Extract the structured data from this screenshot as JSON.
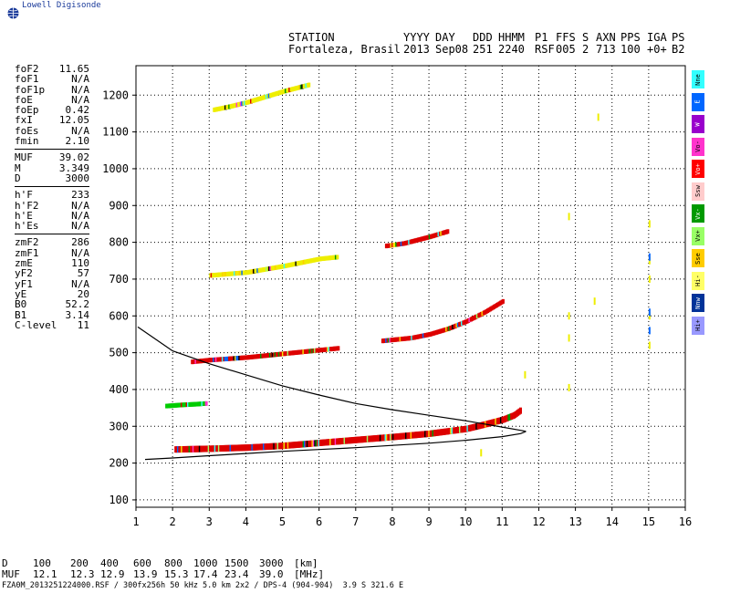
{
  "brand": {
    "name": "Lowell Digisonde",
    "accent": "#1a3a9a"
  },
  "header": {
    "row1": [
      "STATION",
      "YYYY",
      "DAY",
      "DDD",
      "HHMM",
      "P1",
      "FFS",
      "S",
      "AXN",
      "PPS",
      "IGA",
      "PS"
    ],
    "row2": [
      "Fortaleza, Brasil",
      "2013",
      "Sep08",
      "251",
      "2240",
      "RSF",
      "005",
      "2",
      "713",
      "100",
      "+0+",
      "B2"
    ]
  },
  "params": {
    "group1": [
      [
        "foF2",
        "11.65"
      ],
      [
        "foF1",
        "N/A"
      ],
      [
        "foF1p",
        "N/A"
      ],
      [
        "foE",
        "N/A"
      ],
      [
        "foEp",
        "0.42"
      ],
      [
        "fxI",
        "12.05"
      ],
      [
        "foEs",
        "N/A"
      ],
      [
        "fmin",
        "2.10"
      ]
    ],
    "group2": [
      [
        "MUF",
        "39.02"
      ],
      [
        "M",
        "3.349"
      ],
      [
        "D",
        "3000"
      ]
    ],
    "group3": [
      [
        "h'F",
        "233"
      ],
      [
        "h'F2",
        "N/A"
      ],
      [
        "h'E",
        "N/A"
      ],
      [
        "h'Es",
        "N/A"
      ]
    ],
    "group4": [
      [
        "zmF2",
        "286"
      ],
      [
        "zmF1",
        "N/A"
      ],
      [
        "zmE",
        "110"
      ],
      [
        "yF2",
        "57"
      ],
      [
        "yF1",
        "N/A"
      ],
      [
        "yE",
        "20"
      ],
      [
        "B0",
        "52.2"
      ],
      [
        "B1",
        "3.14"
      ],
      [
        "C-level",
        "11"
      ]
    ]
  },
  "legend": [
    {
      "label": "Nne",
      "color": "#33ffff"
    },
    {
      "label": "E",
      "color": "#0066ff"
    },
    {
      "label": "W",
      "color": "#9900cc"
    },
    {
      "label": "Vo-",
      "color": "#ff33cc"
    },
    {
      "label": "Vo+",
      "color": "#ff0000"
    },
    {
      "label": "Ssw",
      "color": "#ffcccc"
    },
    {
      "label": "Vx-",
      "color": "#009900"
    },
    {
      "label": "Vx+",
      "color": "#99ff66"
    },
    {
      "label": "Sse",
      "color": "#ffcc00"
    },
    {
      "label": "Hi-",
      "color": "#ffff66"
    },
    {
      "label": "Nnw",
      "color": "#003399"
    },
    {
      "label": "Hi+",
      "color": "#9999ff"
    }
  ],
  "distance_table": {
    "row1": [
      "D",
      "100",
      "200",
      "400",
      "600",
      "800",
      "1000",
      "1500",
      "3000",
      "[km]"
    ],
    "row2": [
      "MUF",
      "12.1",
      "12.3",
      "12.9",
      "13.9",
      "15.3",
      "17.4",
      "23.4",
      "39.0",
      "[MHz]"
    ]
  },
  "footer": "FZA0M_2013251224000.RSF / 300fx256h 50 kHz 5.0 km 2x2 / DPS-4 (904-904)  3.9 S 321.6 E",
  "chart_data": {
    "type": "scatter",
    "title": "",
    "xlabel": "",
    "ylabel": "",
    "xlim": [
      1,
      16
    ],
    "ylim": [
      80,
      1280
    ],
    "xticks": [
      1,
      2,
      3,
      4,
      5,
      6,
      7,
      8,
      9,
      10,
      11,
      12,
      13,
      14,
      15,
      16
    ],
    "yticks": [
      100,
      200,
      300,
      400,
      500,
      600,
      700,
      800,
      900,
      1000,
      1100,
      1200
    ],
    "grid": "dotted",
    "traces": [
      {
        "name": "F-trace 1st hop",
        "color": "#dd0000",
        "points": [
          [
            2.05,
            237
          ],
          [
            3,
            239
          ],
          [
            4,
            242
          ],
          [
            5,
            247
          ],
          [
            6,
            255
          ],
          [
            7,
            263
          ],
          [
            8,
            271
          ],
          [
            9,
            280
          ],
          [
            10,
            293
          ],
          [
            10.5,
            305
          ],
          [
            11,
            318
          ],
          [
            11.3,
            330
          ],
          [
            11.5,
            345
          ]
        ]
      },
      {
        "name": "F-trace 2nd hop",
        "color": "#dd0000",
        "points": [
          [
            2.5,
            475
          ],
          [
            3,
            480
          ],
          [
            4,
            487
          ],
          [
            5,
            497
          ],
          [
            6,
            507
          ],
          [
            6.5,
            512
          ]
        ]
      },
      {
        "name": "F-trace 2nd hop upper",
        "color": "#dd0000",
        "points": [
          [
            7.7,
            532
          ],
          [
            8.5,
            540
          ],
          [
            9,
            550
          ],
          [
            9.5,
            565
          ],
          [
            10,
            585
          ],
          [
            10.5,
            610
          ],
          [
            11,
            640
          ]
        ]
      },
      {
        "name": "F-trace 3rd hop",
        "color": "#eeee00",
        "points": [
          [
            3,
            710
          ],
          [
            4,
            718
          ],
          [
            5,
            735
          ],
          [
            6,
            755
          ],
          [
            6.5,
            760
          ]
        ]
      },
      {
        "name": "F-trace 3rd hop upper",
        "color": "#dd0000",
        "points": [
          [
            7.8,
            790
          ],
          [
            8.3,
            797
          ],
          [
            9,
            815
          ],
          [
            9.5,
            830
          ]
        ]
      },
      {
        "name": "F-trace 4th hop",
        "color": "#eeee00",
        "points": [
          [
            3.1,
            1160
          ],
          [
            3.5,
            1168
          ],
          [
            4,
            1180
          ],
          [
            4.5,
            1195
          ],
          [
            5,
            1210
          ],
          [
            5.7,
            1228
          ]
        ]
      },
      {
        "name": "Es blob",
        "color": "#00cc00",
        "points": [
          [
            1.8,
            355
          ],
          [
            2.2,
            358
          ],
          [
            2.6,
            360
          ],
          [
            2.9,
            362
          ]
        ]
      }
    ],
    "profile": {
      "name": "electron density profile",
      "color": "#000000",
      "upper": [
        [
          1.05,
          570
        ],
        [
          2,
          505
        ],
        [
          3,
          470
        ],
        [
          4,
          440
        ],
        [
          5,
          410
        ],
        [
          6,
          385
        ],
        [
          7,
          362
        ],
        [
          8,
          345
        ],
        [
          9,
          330
        ],
        [
          10,
          315
        ],
        [
          11,
          298
        ],
        [
          11.5,
          289
        ],
        [
          11.65,
          286
        ]
      ],
      "lower": [
        [
          1.25,
          210
        ],
        [
          2,
          214
        ],
        [
          3,
          220
        ],
        [
          4,
          226
        ],
        [
          5,
          232
        ],
        [
          6,
          237
        ],
        [
          7,
          242
        ],
        [
          8,
          248
        ],
        [
          9,
          254
        ],
        [
          10,
          262
        ],
        [
          11,
          272
        ],
        [
          11.5,
          280
        ],
        [
          11.65,
          286
        ]
      ]
    }
  }
}
